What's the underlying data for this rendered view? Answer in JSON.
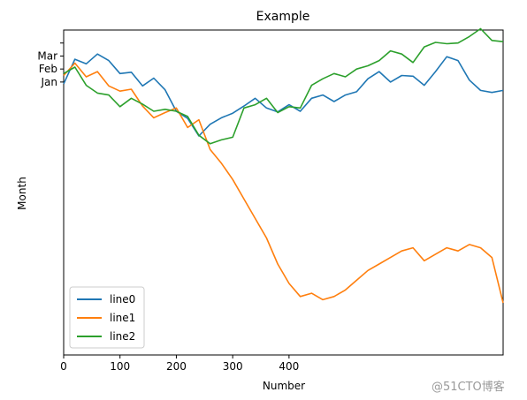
{
  "chart_data": {
    "type": "line",
    "title": "Example",
    "xlabel": "Number",
    "ylabel": "Month",
    "xlim": [
      0,
      780
    ],
    "ylim": [
      -42,
      8
    ],
    "x_ticks": [
      0,
      100,
      200,
      300,
      400
    ],
    "y_ticks": [
      {
        "value": 0,
        "label": "Jan"
      },
      {
        "value": 2,
        "label": "Feb"
      },
      {
        "value": 4,
        "label": "Mar"
      },
      {
        "value": 6,
        "label": ""
      }
    ],
    "grid": false,
    "legend_position": "lower-left",
    "x": [
      0,
      20,
      40,
      60,
      80,
      100,
      120,
      140,
      160,
      180,
      200,
      220,
      240,
      260,
      280,
      300,
      320,
      340,
      360,
      380,
      400,
      420,
      440,
      460,
      480,
      500,
      520,
      540,
      560,
      580,
      600,
      620,
      640,
      660,
      680,
      700,
      720,
      740,
      760,
      780
    ],
    "series": [
      {
        "name": "line0",
        "color": "#1f77b4",
        "values": [
          -0.3,
          3.5,
          2.8,
          4.3,
          3.3,
          1.3,
          1.5,
          -0.6,
          0.6,
          -1.2,
          -4.5,
          -5.6,
          -8.3,
          -6.5,
          -5.5,
          -4.8,
          -3.7,
          -2.5,
          -4.0,
          -4.6,
          -3.5,
          -4.5,
          -2.5,
          -2.0,
          -3.0,
          -2.0,
          -1.5,
          0.5,
          1.6,
          0.0,
          1.0,
          0.9,
          -0.5,
          1.6,
          3.9,
          3.3,
          0.3,
          -1.3,
          -1.6,
          -1.3
        ]
      },
      {
        "name": "line1",
        "color": "#ff7f0e",
        "values": [
          1.0,
          2.9,
          0.8,
          1.6,
          -0.6,
          -1.4,
          -1.1,
          -3.7,
          -5.5,
          -4.7,
          -4.0,
          -7.0,
          -5.8,
          -10.4,
          -12.5,
          -15.0,
          -18.0,
          -21.0,
          -24.0,
          -28.0,
          -31.0,
          -33.0,
          -32.5,
          -33.5,
          -33.0,
          -32.0,
          -30.5,
          -29.0,
          -28.0,
          -27.0,
          -26.0,
          -25.5,
          -27.5,
          -26.5,
          -25.5,
          -26.0,
          -25.0,
          -25.5,
          -27.0,
          -34.0
        ]
      },
      {
        "name": "line2",
        "color": "#2ca02c",
        "values": [
          1.3,
          2.3,
          -0.5,
          -1.7,
          -2.0,
          -3.8,
          -2.5,
          -3.4,
          -4.5,
          -4.2,
          -4.5,
          -5.3,
          -8.2,
          -9.5,
          -8.9,
          -8.5,
          -4.0,
          -3.5,
          -2.5,
          -4.7,
          -3.8,
          -4.0,
          -0.5,
          0.5,
          1.3,
          0.8,
          2.0,
          2.5,
          3.3,
          4.8,
          4.3,
          3.0,
          5.4,
          6.1,
          5.9,
          6.0,
          7.0,
          8.2,
          6.4,
          6.2
        ]
      }
    ]
  },
  "watermark": "@51CTO博客"
}
